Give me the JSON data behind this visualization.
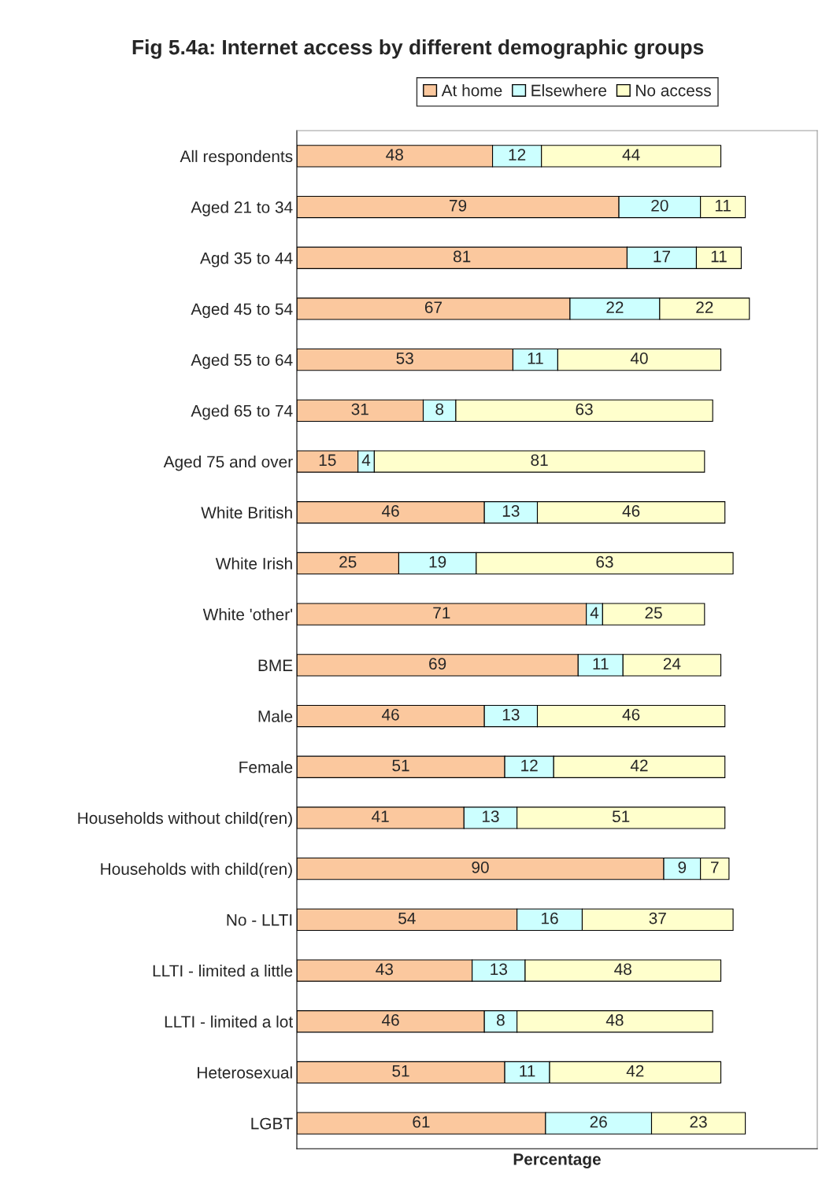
{
  "chart_data": {
    "type": "bar",
    "orientation": "horizontal",
    "stacked": true,
    "data_labels": true,
    "legend": "top",
    "grid": false,
    "tick_labels": "y",
    "title": "Fig 5.4a: Internet access by different demographic groups",
    "xlabel": "Percentage",
    "categories": [
      "All respondents",
      "Aged 21 to 34",
      "Agd 35 to 44",
      "Aged 45 to 54",
      "Aged 55 to 64",
      "Aged 65 to 74",
      "Aged 75 and over",
      "White British",
      "White Irish",
      "White 'other'",
      "BME",
      "Male",
      "Female",
      "Households without child(ren)",
      "Households with child(ren)",
      "No - LLTI",
      "LLTI - limited a little",
      "LLTI - limited a lot",
      "Heterosexual",
      "LGBT"
    ],
    "series": [
      {
        "name": "At home",
        "color": "#fbc89e",
        "values": [
          48,
          79,
          81,
          67,
          53,
          31,
          15,
          46,
          25,
          71,
          69,
          46,
          51,
          41,
          90,
          54,
          43,
          46,
          51,
          61
        ]
      },
      {
        "name": "Elsewhere",
        "color": "#ccffff",
        "values": [
          12,
          20,
          17,
          22,
          11,
          8,
          4,
          13,
          19,
          4,
          11,
          13,
          12,
          13,
          9,
          16,
          13,
          8,
          11,
          26
        ]
      },
      {
        "name": "No access",
        "color": "#ffffcc",
        "values": [
          44,
          11,
          11,
          22,
          40,
          63,
          81,
          46,
          63,
          25,
          24,
          46,
          42,
          51,
          7,
          37,
          48,
          48,
          42,
          23
        ]
      }
    ]
  }
}
